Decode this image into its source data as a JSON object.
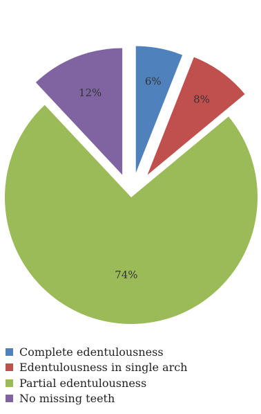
{
  "chart_data": {
    "type": "pie",
    "title": "",
    "exploded": true,
    "legend_position": "bottom",
    "slices": [
      {
        "name": "Complete edentulousness",
        "value": 6,
        "label": "6%",
        "color": "#4f81bd"
      },
      {
        "name": "Edentulousness in single arch",
        "value": 8,
        "label": "8%",
        "color": "#c0504d"
      },
      {
        "name": "Partial edentulousness",
        "value": 74,
        "label": "74%",
        "color": "#9bbb59"
      },
      {
        "name": "No missing teeth",
        "value": 12,
        "label": "12%",
        "color": "#8064a2"
      }
    ]
  }
}
